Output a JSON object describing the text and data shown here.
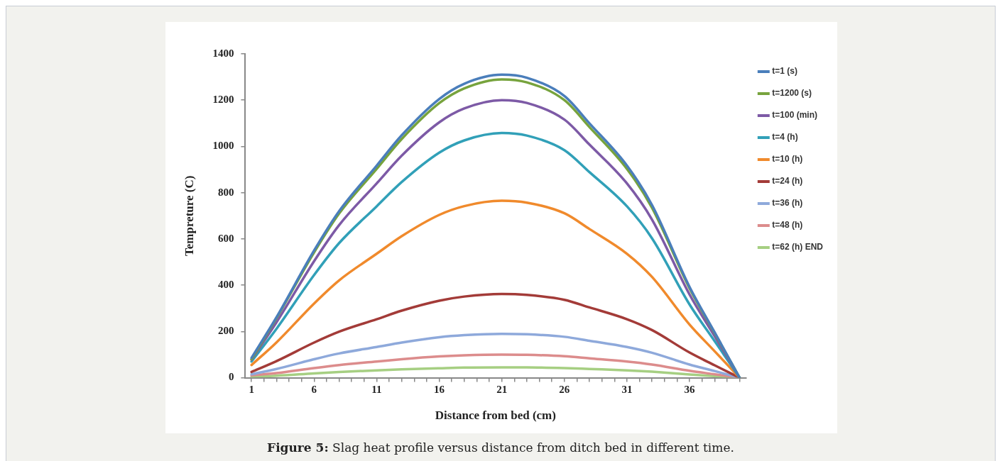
{
  "chart_data": {
    "type": "line",
    "xlabel": "Distance from bed (cm)",
    "ylabel": "Tempreture (C)",
    "annotations": [
      "Figure 5: Slag heat profile versus distance from ditch bed in different time."
    ],
    "x": [
      1,
      3,
      6,
      8,
      11,
      13,
      16,
      18,
      21,
      23,
      26,
      28,
      31,
      33,
      36,
      38,
      40
    ],
    "xlim": [
      0.5,
      40.5
    ],
    "xticks": [
      1,
      {
        "value": 2,
        "label": null
      },
      {
        "value": 3,
        "label": null
      },
      {
        "value": 4,
        "label": null
      },
      {
        "value": 5,
        "label": null
      },
      6,
      {
        "value": 7,
        "label": null
      },
      {
        "value": 8,
        "label": null
      },
      {
        "value": 9,
        "label": null
      },
      {
        "value": 10,
        "label": null
      },
      11,
      {
        "value": 12,
        "label": null
      },
      {
        "value": 13,
        "label": null
      },
      {
        "value": 14,
        "label": null
      },
      {
        "value": 15,
        "label": null
      },
      16,
      {
        "value": 17,
        "label": null
      },
      {
        "value": 18,
        "label": null
      },
      {
        "value": 19,
        "label": null
      },
      {
        "value": 20,
        "label": null
      },
      21,
      {
        "value": 22,
        "label": null
      },
      {
        "value": 23,
        "label": null
      },
      {
        "value": 24,
        "label": null
      },
      {
        "value": 25,
        "label": null
      },
      26,
      {
        "value": 27,
        "label": null
      },
      {
        "value": 28,
        "label": null
      },
      {
        "value": 29,
        "label": null
      },
      {
        "value": 30,
        "label": null
      },
      31,
      {
        "value": 32,
        "label": null
      },
      {
        "value": 33,
        "label": null
      },
      {
        "value": 34,
        "label": null
      },
      {
        "value": 35,
        "label": null
      },
      36,
      {
        "value": 37,
        "label": null
      },
      {
        "value": 38,
        "label": null
      },
      {
        "value": 39,
        "label": null
      },
      {
        "value": 40,
        "label": null
      }
    ],
    "ylim": [
      0,
      1400
    ],
    "yticks": [
      0,
      200,
      400,
      600,
      800,
      1000,
      1200,
      1400
    ],
    "grid": false,
    "legend": "top right",
    "marker": "none",
    "line_style": "solid",
    "series": [
      {
        "name": "t=1 (s)",
        "color": "#4a7ebb",
        "values": [
          86,
          262,
          550,
          720,
          917,
          1048,
          1205,
          1271,
          1310,
          1297,
          1218,
          1100,
          917,
          747,
          393,
          197,
          0
        ]
      },
      {
        "name": "t=1200 (s)",
        "color": "#77a33d",
        "values": [
          80,
          258,
          542,
          710,
          903,
          1032,
          1187,
          1251,
          1290,
          1277,
          1200,
          1084,
          903,
          735,
          387,
          194,
          0
        ]
      },
      {
        "name": "t=100 (min)",
        "color": "#7d5aa6",
        "values": [
          78,
          240,
          504,
          660,
          840,
          960,
          1104,
          1164,
          1200,
          1188,
          1116,
          1008,
          840,
          684,
          360,
          180,
          0
        ]
      },
      {
        "name": "t=4 (h)",
        "color": "#31a0b8",
        "values": [
          70,
          212,
          444,
          582,
          741,
          846,
          973,
          1026,
          1058,
          1047,
          984,
          889,
          741,
          603,
          317,
          159,
          0
        ]
      },
      {
        "name": "t=10 (h)",
        "color": "#f08a2c",
        "values": [
          55,
          153,
          321,
          421,
          536,
          612,
          704,
          742,
          765,
          757,
          711,
          643,
          536,
          436,
          230,
          115,
          0
        ]
      },
      {
        "name": "t=24 (h)",
        "color": "#a33b38",
        "values": [
          25,
          72,
          152,
          199,
          253,
          290,
          333,
          351,
          362,
          358,
          337,
          304,
          253,
          206,
          109,
          54,
          0
        ]
      },
      {
        "name": "t=36 (h)",
        "color": "#8ea9db",
        "values": [
          15,
          38,
          80,
          105,
          133,
          152,
          175,
          184,
          190,
          188,
          177,
          160,
          133,
          108,
          57,
          29,
          0
        ]
      },
      {
        "name": "t=48 (h)",
        "color": "#dc8c8c",
        "values": [
          10,
          20,
          42,
          55,
          70,
          80,
          92,
          97,
          100,
          99,
          93,
          84,
          70,
          57,
          30,
          15,
          0
        ]
      },
      {
        "name": "t=62 (h) END",
        "color": "#a6cf82",
        "values": [
          5,
          9,
          19,
          25,
          32,
          36,
          41,
          44,
          45,
          45,
          42,
          38,
          32,
          26,
          14,
          7,
          0
        ]
      }
    ]
  }
}
